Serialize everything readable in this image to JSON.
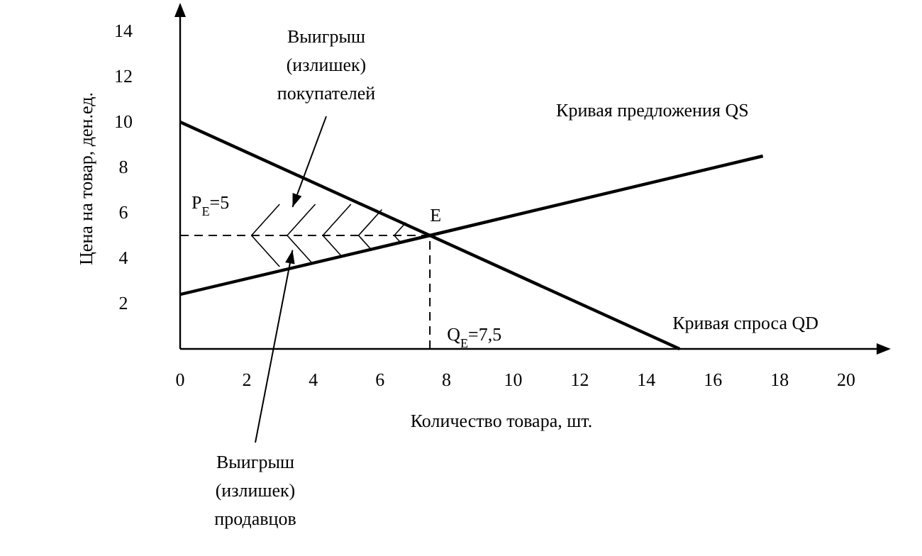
{
  "chart_data": {
    "type": "line",
    "xlabel": "Количество товара, шт.",
    "ylabel": "Цена на  товар, ден.ед.",
    "xlim": [
      0,
      21
    ],
    "xticks": [
      0,
      2,
      4,
      6,
      8,
      10,
      12,
      14,
      16,
      18,
      20
    ],
    "ylim": [
      0,
      15
    ],
    "yticks": [
      2,
      4,
      6,
      8,
      10,
      12,
      14
    ],
    "series": [
      {
        "name": "Кривая предложения QS",
        "color": "#000000",
        "x": [
          0,
          7.5,
          17.5
        ],
        "values": [
          2.4,
          5,
          8.5
        ]
      },
      {
        "name": "Кривая спроса QD",
        "color": "#000000",
        "x": [
          0,
          7.5,
          15
        ],
        "values": [
          10,
          5,
          0
        ]
      }
    ],
    "ref_lines": [
      {
        "axis": "y",
        "value": 5,
        "label": "P$_{E}$=5",
        "line_style": "dashed"
      },
      {
        "axis": "x",
        "value": 7.5,
        "label": "Q$_{E}$=7,5",
        "line_style": "dashed"
      }
    ],
    "annotations": [
      {
        "text": "E",
        "x": 7.5,
        "y": 5
      },
      "Выигрыш\n(излишек)\nпокупателей",
      "Выигрыш\n(излишек)\nпродавцов"
    ],
    "grid": false,
    "marker": "none",
    "line_style": "solid"
  }
}
